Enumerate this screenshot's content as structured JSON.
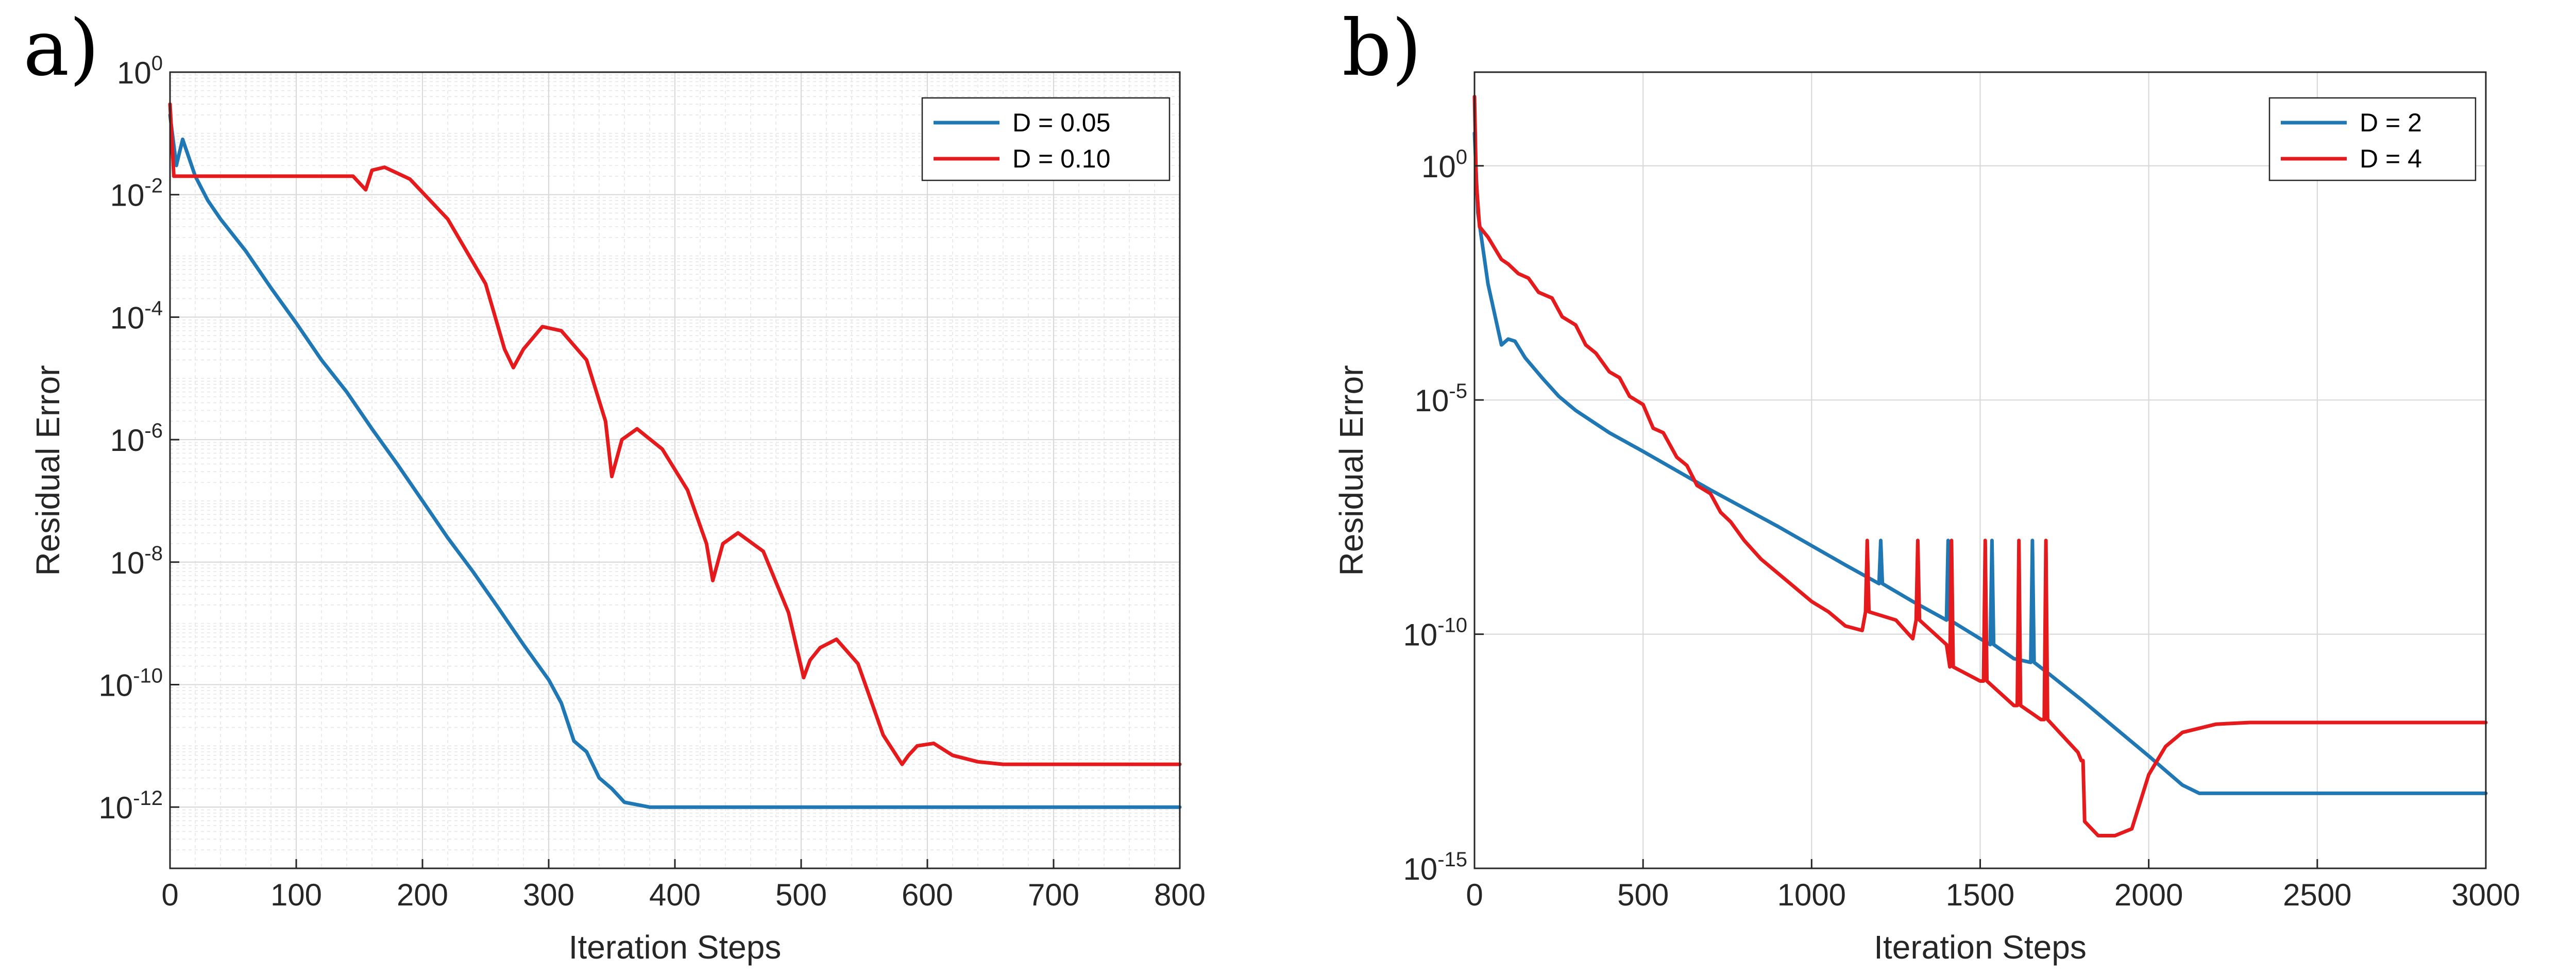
{
  "figure": {
    "panels": [
      "a)",
      "b)"
    ]
  },
  "chart_data": [
    {
      "panel": "a)",
      "type": "line",
      "xlabel": "Iteration Steps",
      "ylabel": "Residual Error",
      "yscale": "log",
      "xlim": [
        0,
        800
      ],
      "ylim": [
        1e-13,
        1
      ],
      "xticks": [
        0,
        100,
        200,
        300,
        400,
        500,
        600,
        700,
        800
      ],
      "yticks": [
        {
          "base": "10",
          "exp": "-12",
          "value": 1e-12
        },
        {
          "base": "10",
          "exp": "-10",
          "value": 1e-10
        },
        {
          "base": "10",
          "exp": "-8",
          "value": 1e-08
        },
        {
          "base": "10",
          "exp": "-6",
          "value": 1e-06
        },
        {
          "base": "10",
          "exp": "-4",
          "value": 0.0001
        },
        {
          "base": "10",
          "exp": "-2",
          "value": 0.01
        },
        {
          "base": "10",
          "exp": "0",
          "value": 1
        }
      ],
      "grid": "major and minor",
      "legend_position": "top-right",
      "series": [
        {
          "name": "D = 0.05",
          "color": "#1f77b4",
          "x": [
            0,
            5,
            10,
            20,
            30,
            40,
            60,
            80,
            100,
            120,
            140,
            160,
            180,
            200,
            220,
            240,
            260,
            280,
            300,
            310,
            320,
            330,
            340,
            350,
            360,
            380,
            400,
            500,
            600,
            700,
            800
          ],
          "y": [
            0.2,
            0.03,
            0.08,
            0.02,
            0.008,
            0.004,
            0.0012,
            0.0003,
            8e-05,
            2e-05,
            6e-06,
            1.5e-06,
            4e-07,
            1e-07,
            2.5e-08,
            7e-09,
            1.8e-09,
            4.5e-10,
            1.2e-10,
            5e-11,
            1.2e-11,
            8e-12,
            3e-12,
            2e-12,
            1.2e-12,
            1e-12,
            1e-12,
            1e-12,
            1e-12,
            1e-12,
            1e-12
          ]
        },
        {
          "name": "D = 0.10",
          "color": "#e41a1c",
          "x": [
            0,
            3,
            10,
            30,
            100,
            145,
            155,
            160,
            170,
            190,
            220,
            250,
            265,
            272,
            280,
            295,
            310,
            330,
            345,
            350,
            358,
            370,
            390,
            410,
            425,
            430,
            438,
            450,
            470,
            490,
            502,
            507,
            515,
            528,
            545,
            565,
            580,
            585,
            592,
            605,
            620,
            640,
            660,
            700,
            800
          ],
          "y": [
            0.3,
            0.02,
            0.02,
            0.02,
            0.02,
            0.02,
            0.012,
            0.025,
            0.028,
            0.018,
            0.004,
            0.00035,
            3e-05,
            1.5e-05,
            3e-05,
            7e-05,
            6e-05,
            2e-05,
            2e-06,
            2.5e-07,
            1e-06,
            1.5e-06,
            7e-07,
            1.5e-07,
            2e-08,
            5e-09,
            2e-08,
            3e-08,
            1.5e-08,
            1.5e-09,
            1.3e-10,
            2.5e-10,
            4e-10,
            5.5e-10,
            2.2e-10,
            1.5e-11,
            5e-12,
            7e-12,
            1e-11,
            1.1e-11,
            7e-12,
            5.5e-12,
            5e-12,
            5e-12,
            5e-12
          ]
        }
      ]
    },
    {
      "panel": "b)",
      "type": "line",
      "xlabel": "Iteration Steps",
      "ylabel": "Residual Error",
      "yscale": "log",
      "xlim": [
        0,
        3000
      ],
      "ylim": [
        1e-15,
        100
      ],
      "xticks": [
        0,
        500,
        1000,
        1500,
        2000,
        2500,
        3000
      ],
      "yticks": [
        {
          "base": "10",
          "exp": "-15",
          "value": 1e-15
        },
        {
          "base": "10",
          "exp": "-10",
          "value": 1e-10
        },
        {
          "base": "10",
          "exp": "-5",
          "value": 1e-05
        },
        {
          "base": "10",
          "exp": "0",
          "value": 1
        }
      ],
      "grid": "major",
      "legend_position": "top-right",
      "series": [
        {
          "name": "D = 2",
          "color": "#1f77b4",
          "x": [
            0,
            10,
            40,
            80,
            100,
            120,
            150,
            200,
            250,
            300,
            400,
            500,
            700,
            900,
            1100,
            1200,
            1205,
            1210,
            1300,
            1400,
            1405,
            1410,
            1500,
            1530,
            1535,
            1540,
            1600,
            1650,
            1655,
            1660,
            1700,
            1800,
            1900,
            2000,
            2100,
            2150,
            2200,
            2500,
            3000
          ],
          "y": [
            5,
            0.1,
            0.003,
            0.00015,
            0.0002,
            0.00018,
            8e-05,
            3e-05,
            1.2e-05,
            6e-06,
            2e-06,
            8e-07,
            1.2e-07,
            2e-08,
            3e-09,
            1.2e-09,
            1e-08,
            1.2e-09,
            5e-10,
            2e-10,
            1e-08,
            2e-10,
            8e-11,
            6e-11,
            1e-08,
            6e-11,
            3e-11,
            2.5e-11,
            1e-08,
            2.5e-11,
            1.5e-11,
            4e-12,
            1e-12,
            2.5e-13,
            6e-14,
            4e-14,
            4e-14,
            4e-14,
            4e-14
          ]
        },
        {
          "name": "D = 4",
          "color": "#e41a1c",
          "x": [
            0,
            5,
            15,
            40,
            80,
            100,
            130,
            160,
            190,
            230,
            260,
            300,
            330,
            360,
            400,
            430,
            460,
            500,
            530,
            560,
            600,
            630,
            660,
            700,
            730,
            760,
            800,
            850,
            900,
            950,
            1000,
            1050,
            1100,
            1150,
            1160,
            1165,
            1170,
            1250,
            1300,
            1310,
            1315,
            1320,
            1400,
            1410,
            1415,
            1420,
            1500,
            1510,
            1515,
            1520,
            1600,
            1610,
            1615,
            1620,
            1680,
            1690,
            1695,
            1700,
            1790,
            1800,
            1805,
            1810,
            1850,
            1900,
            1950,
            2000,
            2050,
            2100,
            2200,
            2300,
            2500,
            3000
          ],
          "y": [
            30,
            0.5,
            0.05,
            0.03,
            0.01,
            0.008,
            0.005,
            0.004,
            0.002,
            0.0015,
            0.0006,
            0.0004,
            0.00015,
            0.0001,
            4e-05,
            3e-05,
            1.2e-05,
            8e-06,
            2.5e-06,
            2e-06,
            6e-07,
            4e-07,
            1.5e-07,
            1e-07,
            4e-08,
            2.5e-08,
            1e-08,
            4e-09,
            2e-09,
            1e-09,
            5e-10,
            3e-10,
            1.5e-10,
            1.2e-10,
            3e-10,
            1e-08,
            3e-10,
            2e-10,
            8e-11,
            2e-10,
            1e-08,
            2e-10,
            6e-11,
            2e-11,
            1e-08,
            2e-11,
            1e-11,
            1e-11,
            1e-08,
            1e-11,
            3e-12,
            3e-12,
            1e-08,
            3e-12,
            1.5e-12,
            1.5e-12,
            1e-08,
            1.5e-12,
            3e-13,
            2e-13,
            2e-13,
            1e-14,
            5e-15,
            5e-15,
            7e-15,
            1e-13,
            4e-13,
            8e-13,
            1.2e-12,
            1.3e-12,
            1.3e-12,
            1.3e-12
          ]
        }
      ]
    }
  ]
}
